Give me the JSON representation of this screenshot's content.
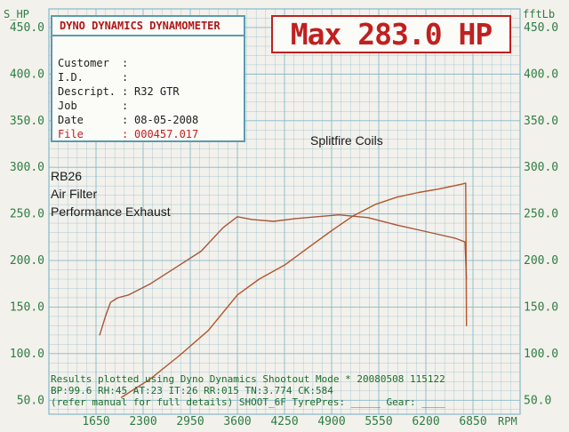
{
  "chart_data": {
    "type": "line",
    "left_axis_label": "S_HP",
    "right_axis_label": "fftLb",
    "x_unit_label": "RPM",
    "x_ticks": [
      1650,
      2300,
      2950,
      3600,
      4250,
      4900,
      5550,
      6200,
      6850
    ],
    "y_ticks": [
      "50.0",
      "100.0",
      "150.0",
      "200.0",
      "250.0",
      "300.0",
      "350.0",
      "400.0",
      "450.0"
    ],
    "x_range": [
      1000,
      7500
    ],
    "y_range": [
      35,
      470
    ],
    "grid": true,
    "series": [
      {
        "role": "power",
        "color": "#b5552b",
        "x": [
          2000,
          2400,
          2800,
          3200,
          3600,
          3900,
          4250,
          4600,
          4900,
          5200,
          5500,
          5800,
          6100,
          6400,
          6700,
          6750,
          6760
        ],
        "y": [
          53,
          73,
          98,
          125,
          163,
          180,
          195,
          215,
          232,
          248,
          260,
          268,
          273,
          277,
          282,
          283,
          130
        ]
      },
      {
        "role": "torque",
        "color": "#a8553a",
        "x": [
          1700,
          1780,
          1850,
          1950,
          2100,
          2400,
          2800,
          3100,
          3400,
          3600,
          3800,
          4100,
          4400,
          4700,
          5000,
          5400,
          5800,
          6200,
          6600,
          6740,
          6760
        ],
        "y": [
          120,
          140,
          155,
          160,
          163,
          175,
          195,
          210,
          235,
          247,
          244,
          242,
          245,
          247,
          249,
          246,
          238,
          231,
          224,
          220,
          180
        ]
      }
    ]
  },
  "info": {
    "title": "DYNO DYNAMICS DYNAMOMETER",
    "rows": [
      {
        "label": "Customer",
        "sep": ":",
        "value": ""
      },
      {
        "label": "I.D.",
        "sep": ":",
        "value": ""
      },
      {
        "label": "Descript.",
        "sep": ":",
        "value": "R32 GTR"
      },
      {
        "label": "Job",
        "sep": ":",
        "value": ""
      },
      {
        "label": "Date",
        "sep": ":",
        "value": "08-05-2008"
      },
      {
        "label": "File",
        "sep": ":",
        "value": "000457.017"
      }
    ]
  },
  "max_label": "Max 283.0 HP",
  "annotations": {
    "splitfire": "Splitfire Coils",
    "rb26": "RB26",
    "air_filter": "Air Filter",
    "exhaust": "Performance Exhaust"
  },
  "footer": {
    "line1": "Results plotted using Dyno Dynamics Shootout Mode * 20080508 115122",
    "line2": "BP:99.6  RH:45 AT:23 IT:26  RR:015 TN:3.774 CK:584",
    "line3": "(refer manual for full details) SHOOT_6F TyrePres: _____ Gear: ____"
  },
  "colors": {
    "background": "#f3f1ec",
    "grid": "#86b8c8",
    "axis_text": "#2e7d43",
    "info_border": "#5a9bb0",
    "max_text": "#c02020"
  }
}
